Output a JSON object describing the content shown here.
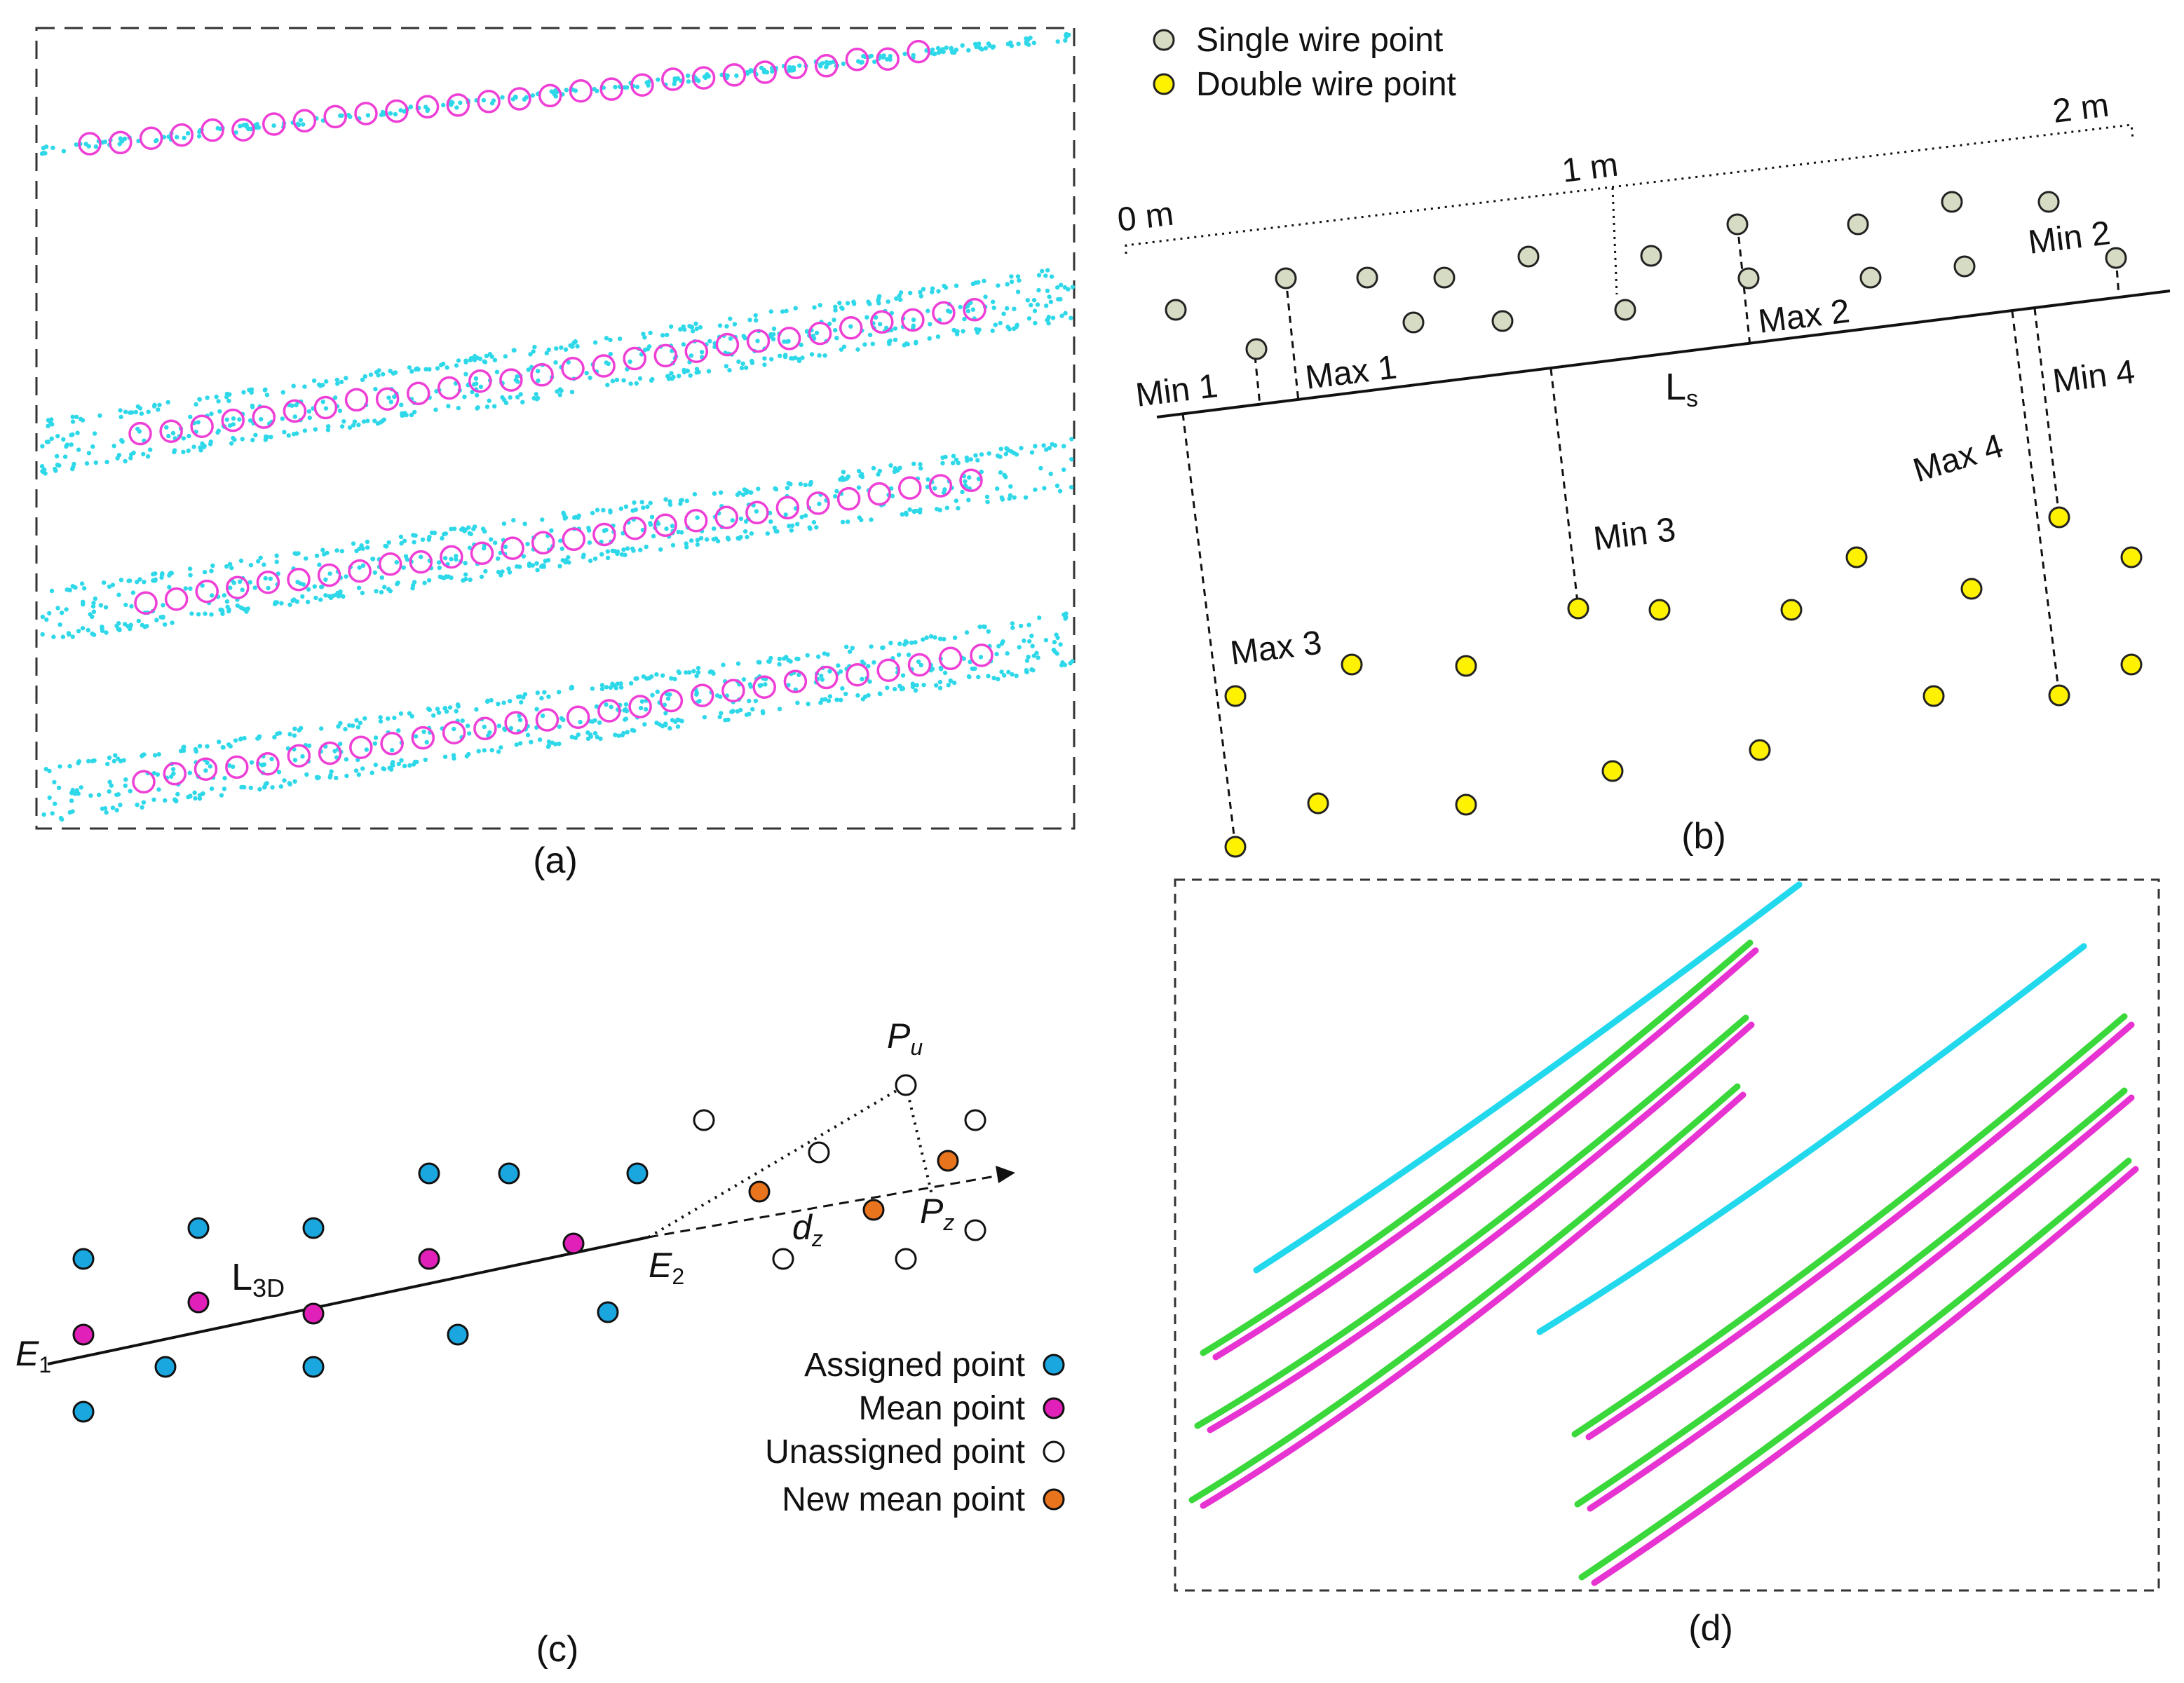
{
  "panels": {
    "a": {
      "caption": "(a)"
    },
    "b": {
      "caption": "(b)",
      "legend": [
        {
          "label": "Single wire point",
          "color": "#d6dbc4"
        },
        {
          "label": "Double wire point",
          "color": "#fff200"
        }
      ],
      "scale": {
        "start": "0 m",
        "mid": "1 m",
        "end": "2 m"
      },
      "line_label_main": "L",
      "line_label_sub": "s",
      "annotations": {
        "min1": "Min 1",
        "max1": "Max 1",
        "max2": "Max 2",
        "min2": "Min 2",
        "min3": "Min 3",
        "max3": "Max 3",
        "max4": "Max 4",
        "min4": "Min 4"
      }
    },
    "c": {
      "caption": "(c)",
      "labels": {
        "e1_main": "E",
        "e1_sub": "1",
        "e2_main": "E",
        "e2_sub": "2",
        "l3d_main": "L",
        "l3d_sub": "3D",
        "pu_main": "P",
        "pu_sub": "u",
        "pz_main": "P",
        "pz_sub": "z",
        "dz_main": "d",
        "dz_sub": "z"
      },
      "legend": [
        {
          "label": "Assigned point",
          "color": "#1aa7df"
        },
        {
          "label": "Mean point",
          "color": "#e020b8"
        },
        {
          "label": "Unassigned point",
          "color": "#ffffff"
        },
        {
          "label": "New mean point",
          "color": "#e8741e"
        }
      ]
    },
    "d": {
      "caption": "(d)",
      "colors": {
        "cyan": "#22d8ec",
        "green": "#3ad83a",
        "magenta": "#e633d1"
      }
    }
  },
  "colors": {
    "cyan_points": "#2ed8e8",
    "magenta_circles": "#ee3fd6",
    "frame": "#333333"
  }
}
